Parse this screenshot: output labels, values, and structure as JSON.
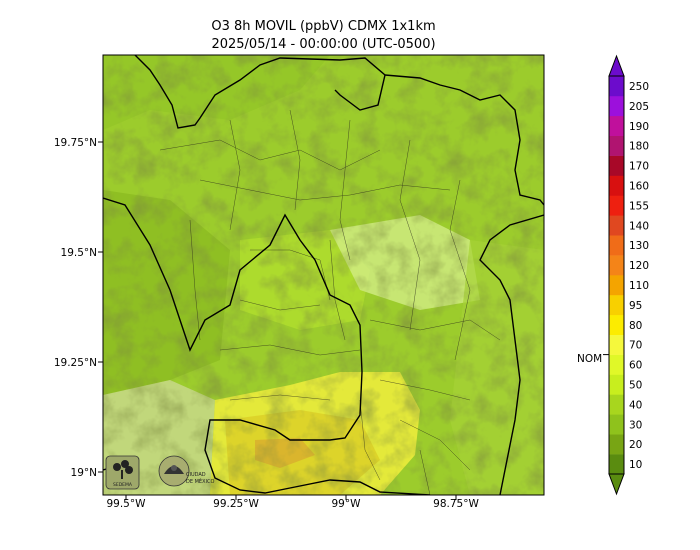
{
  "title": {
    "line1": "O3 8h MOVIL (ppbV) CDMX 1x1km",
    "line2": "2025/05/14 - 00:00:00 (UTC-0500)"
  },
  "axes": {
    "lat_ticks": [
      "19.75°N",
      "19.5°N",
      "19.25°N",
      "19°N"
    ],
    "lon_ticks": [
      "99.5°W",
      "99.25°W",
      "99°W",
      "98.75°W"
    ]
  },
  "colorbar": {
    "levels": [
      "10",
      "20",
      "30",
      "40",
      "50",
      "60",
      "70",
      "80",
      "95",
      "110",
      "120",
      "130",
      "140",
      "155",
      "160",
      "170",
      "180",
      "190",
      "205",
      "250"
    ],
    "colors": [
      "#5a8c10",
      "#78a514",
      "#8fc21c",
      "#a8d61e",
      "#c8ee1e",
      "#e0f828",
      "#f5f83c",
      "#fcec00",
      "#f8d000",
      "#f4a400",
      "#f48418",
      "#f06c18",
      "#e04820",
      "#ee2010",
      "#d81010",
      "#a80828",
      "#b01470",
      "#c0109c",
      "#9c10dc",
      "#6c0ccc"
    ],
    "nom_label": "NOM",
    "nom_value": 65
  },
  "logos": [
    "SEDEMA",
    "CIUDAD DE MÉXICO"
  ]
}
